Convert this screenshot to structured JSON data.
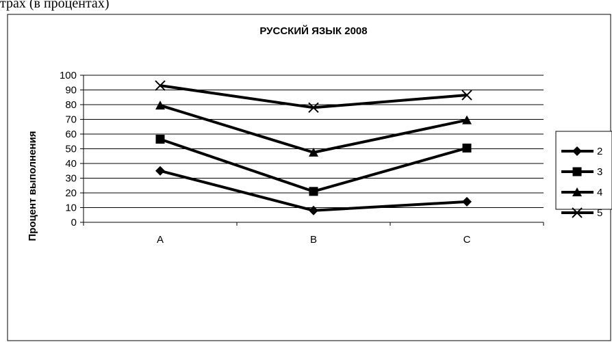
{
  "header_text": "трах (в процентах)",
  "chart_data": {
    "type": "line",
    "title": "РУССКИЙ ЯЗЫК 2008",
    "xlabel": "",
    "ylabel": "Процент выполнения",
    "categories": [
      "A",
      "B",
      "C"
    ],
    "ylim": [
      0,
      100
    ],
    "yticks": [
      0,
      10,
      20,
      30,
      40,
      50,
      60,
      70,
      80,
      90,
      100
    ],
    "grid": true,
    "legend_position": "right",
    "series": [
      {
        "name": "2",
        "marker": "diamond",
        "values": [
          35,
          8,
          14
        ]
      },
      {
        "name": "3",
        "marker": "square",
        "values": [
          56.5,
          21,
          50.5
        ]
      },
      {
        "name": "4",
        "marker": "triangle",
        "values": [
          79.5,
          47.5,
          69.5
        ]
      },
      {
        "name": "5",
        "marker": "x",
        "values": [
          93,
          78,
          86.5
        ]
      }
    ]
  }
}
